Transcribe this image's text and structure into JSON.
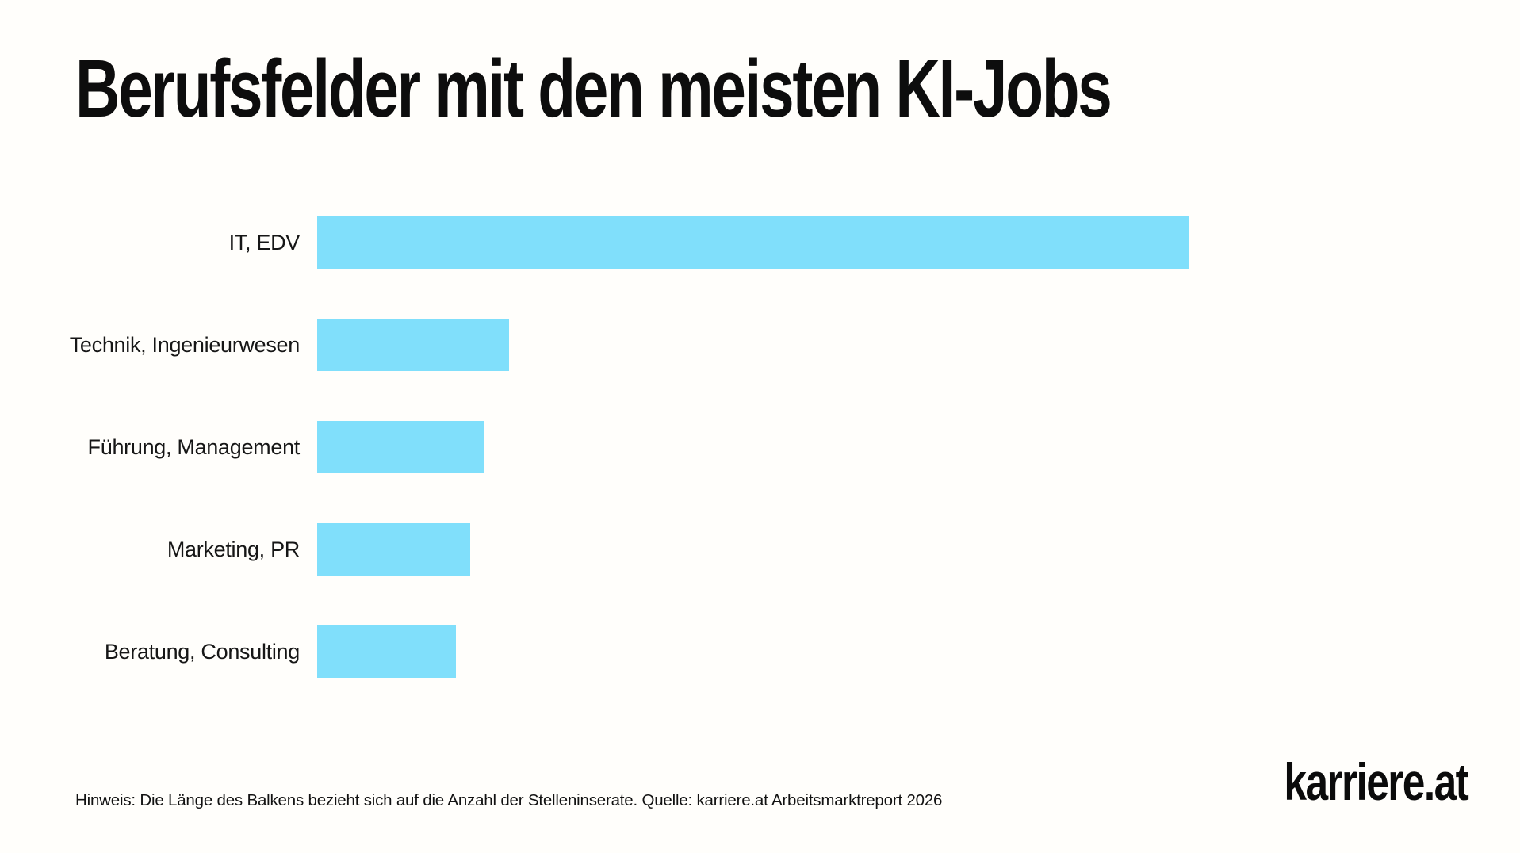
{
  "chart_data": {
    "type": "bar",
    "orientation": "horizontal",
    "title": "Berufsfelder mit den meisten KI-Jobs",
    "categories": [
      "IT, EDV",
      "Technik, Ingenieurwesen",
      "Führung, Management",
      "Marketing, PR",
      "Beratung, Consulting"
    ],
    "values": [
      100,
      22,
      19.1,
      17.5,
      15.9
    ],
    "value_unit": "relative bar length, % of longest bar (no numeric axis shown)",
    "xlabel": "",
    "ylabel": "",
    "axes_visible": false,
    "grid": false,
    "legend": "none",
    "bar_color": "#80dffb"
  },
  "footer": {
    "note": "Hinweis: Die Länge des Balkens bezieht sich auf die Anzahl der Stelleninserate. Quelle: karriere.at Arbeitsmarktreport 2026",
    "logo_text": "karriere.at"
  },
  "colors": {
    "background": "#fffefb",
    "text": "#111111",
    "accent_bar": "#80dffb"
  }
}
